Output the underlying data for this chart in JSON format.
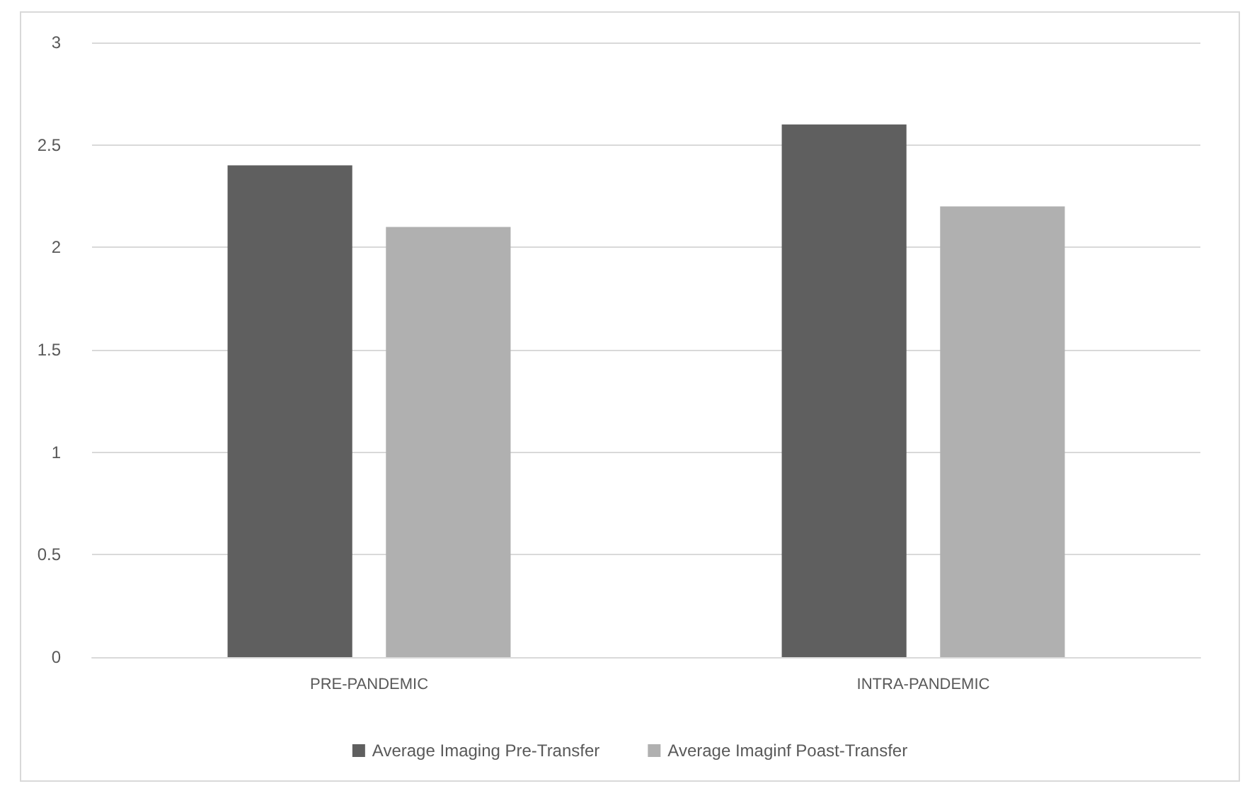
{
  "chart_data": {
    "type": "bar",
    "categories": [
      "PRE-PANDEMIC",
      "INTRA-PANDEMIC"
    ],
    "series": [
      {
        "name": "Average Imaging Pre-Transfer",
        "color": "#5f5f5f",
        "values": [
          2.4,
          2.6
        ]
      },
      {
        "name": "Average Imaginf Poast-Transfer",
        "color": "#b0b0b0",
        "values": [
          2.1,
          2.2
        ]
      }
    ],
    "ylim": [
      0,
      3
    ],
    "yticks": [
      0,
      0.5,
      1,
      1.5,
      2,
      2.5,
      3
    ],
    "grid": "y",
    "legend": "bottom"
  }
}
